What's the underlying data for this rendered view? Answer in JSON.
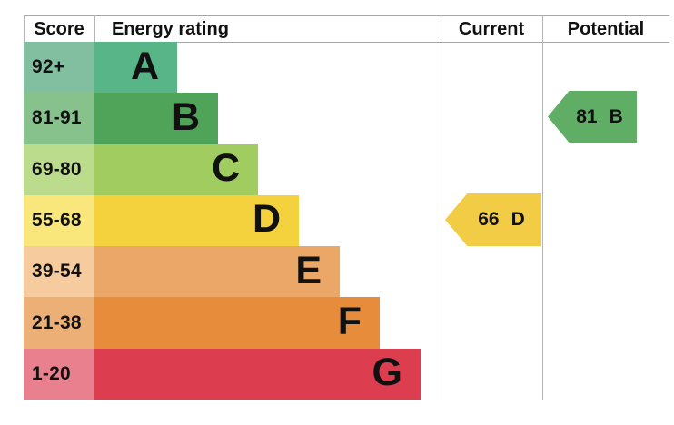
{
  "header": {
    "score": "Score",
    "energy_rating": "Energy rating",
    "current": "Current",
    "potential": "Potential"
  },
  "bands": [
    {
      "band": "A",
      "range": "92+",
      "cell_color": "#82bfa1",
      "bar_color": "#57b588"
    },
    {
      "band": "B",
      "range": "81-91",
      "cell_color": "#87c28d",
      "bar_color": "#4fa45a"
    },
    {
      "band": "C",
      "range": "69-80",
      "cell_color": "#bbdb8d",
      "bar_color": "#a0cc60"
    },
    {
      "band": "D",
      "range": "55-68",
      "cell_color": "#f9e77c",
      "bar_color": "#f4d23d"
    },
    {
      "band": "E",
      "range": "39-54",
      "cell_color": "#f6cc9e",
      "bar_color": "#eaa768"
    },
    {
      "band": "F",
      "range": "21-38",
      "cell_color": "#ecb076",
      "bar_color": "#e78c3b"
    },
    {
      "band": "G",
      "range": "1-20",
      "cell_color": "#e8808e",
      "bar_color": "#dc3e4f"
    }
  ],
  "current": {
    "value": "66",
    "band": "D",
    "color": "#f1cc44"
  },
  "potential": {
    "value": "81",
    "band": "B",
    "color": "#60ad66"
  },
  "chart_data": {
    "type": "bar",
    "title": "Energy rating",
    "columns": [
      "Score",
      "Energy rating",
      "Current",
      "Potential"
    ],
    "categories": [
      "A",
      "B",
      "C",
      "D",
      "E",
      "F",
      "G"
    ],
    "score_ranges": [
      "92+",
      "81-91",
      "69-80",
      "55-68",
      "39-54",
      "21-38",
      "1-20"
    ],
    "current_rating": {
      "score": 66,
      "band": "D"
    },
    "potential_rating": {
      "score": 81,
      "band": "B"
    },
    "legend_position": "none",
    "grid": "column-separators-only"
  }
}
